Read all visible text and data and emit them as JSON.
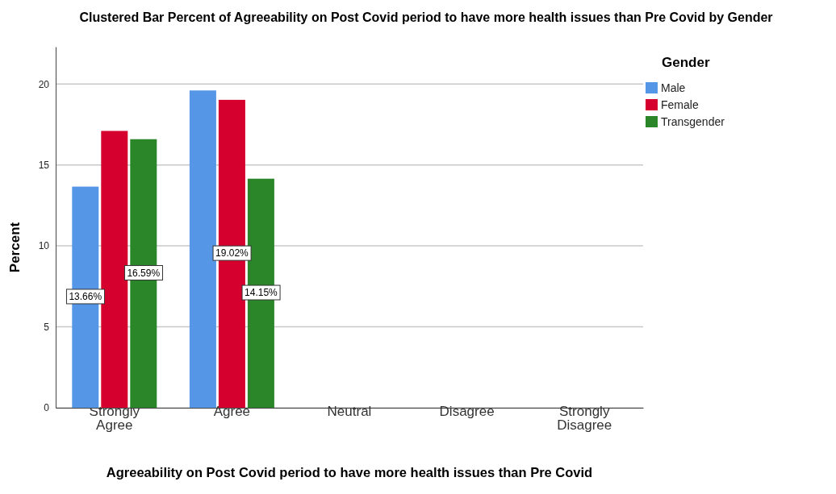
{
  "chart_data": {
    "type": "bar",
    "title": "Clustered Bar Percent of Agreeability on Post Covid period to have more health issues than Pre Covid by Gender",
    "xlabel": "Agreeability on Post Covid period to have more health issues than Pre Covid",
    "ylabel": "Percent",
    "legend_title": "Gender",
    "categories": [
      "Strongly Agree",
      "Agree",
      "Neutral",
      "Disagree",
      "Strongly Disagree"
    ],
    "series": [
      {
        "name": "Male",
        "color": "#5596e6",
        "values": [
          13.66,
          19.6,
          0,
          0,
          0
        ],
        "value_labels": [
          "13.66%",
          null,
          null,
          null,
          null
        ]
      },
      {
        "name": "Female",
        "color": "#d6002e",
        "values": [
          17.1,
          19.02,
          0,
          0,
          0
        ],
        "value_labels": [
          null,
          "19.02%",
          null,
          null,
          null
        ]
      },
      {
        "name": "Transgender",
        "color": "#2a8629",
        "values": [
          16.59,
          14.15,
          0,
          0,
          0
        ],
        "value_labels": [
          "16.59%",
          "14.15%",
          null,
          null,
          null
        ]
      }
    ],
    "ylim": [
      0,
      22.3
    ],
    "yticks": [
      0,
      5,
      10,
      15,
      20
    ],
    "grid": "y",
    "legend": "top right"
  }
}
